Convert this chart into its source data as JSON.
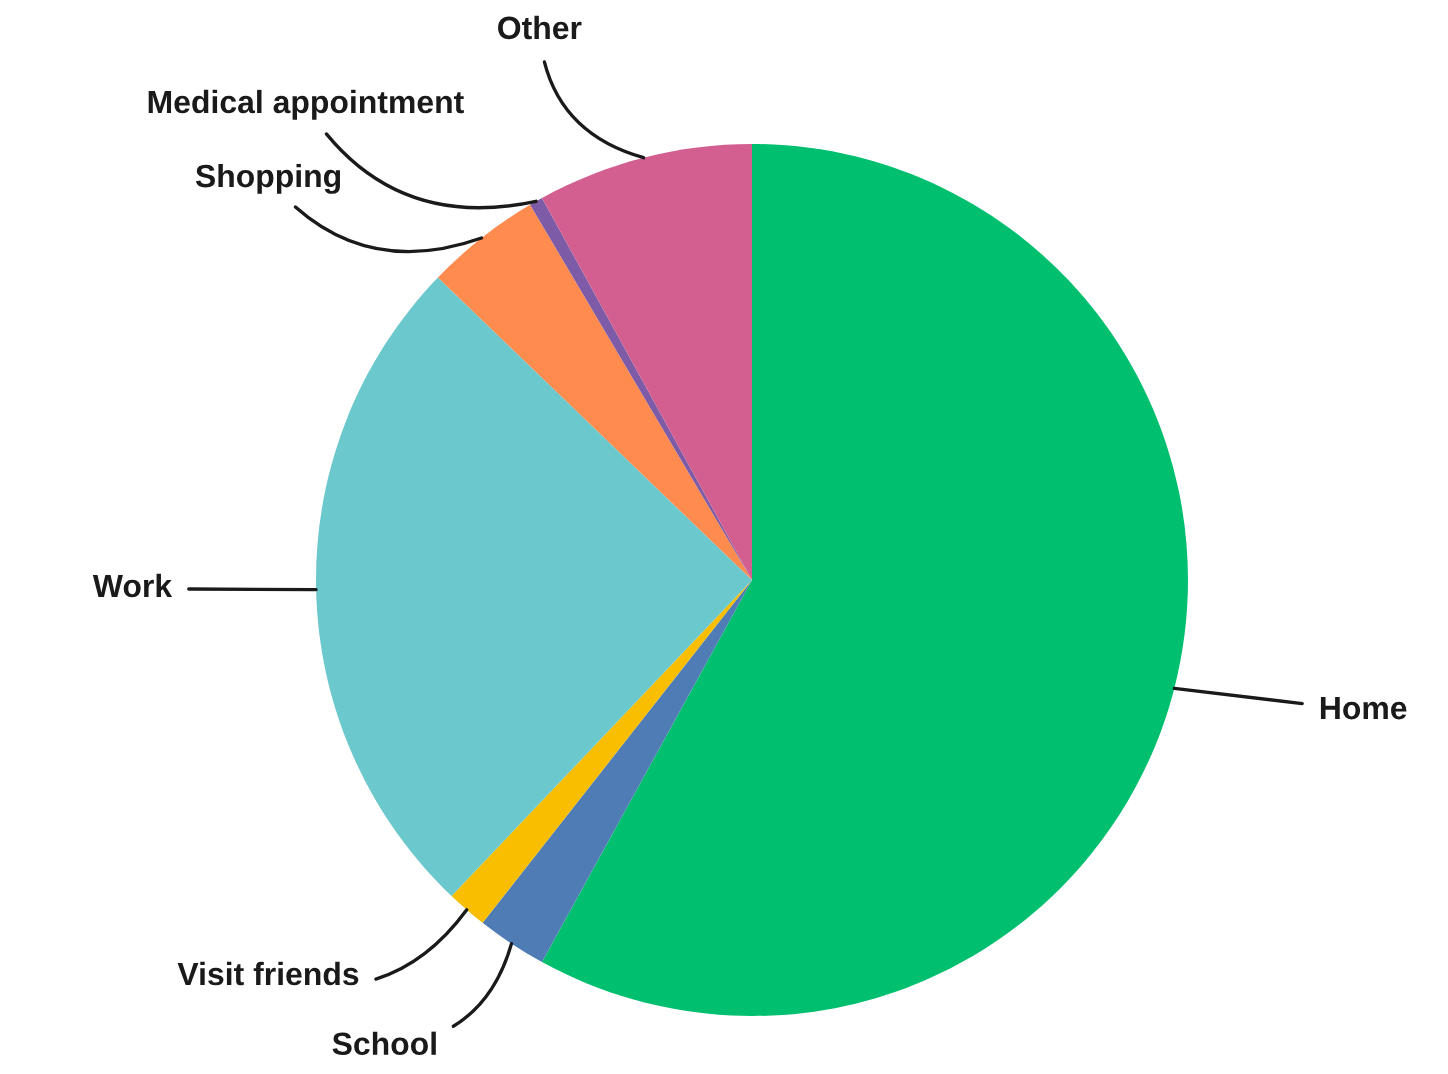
{
  "chart_data": {
    "type": "pie",
    "categories": [
      "Home",
      "School",
      "Visit friends",
      "Work",
      "Shopping",
      "Medical appointment",
      "Other"
    ],
    "values": [
      58,
      2.6,
      1.5,
      25.1,
      4.3,
      0.5,
      8
    ],
    "colors": [
      "#00bf6f",
      "#507cb6",
      "#f9be00",
      "#6bc8cd",
      "#ff8b4f",
      "#7d5ba6",
      "#d25f90"
    ],
    "legend": false
  }
}
